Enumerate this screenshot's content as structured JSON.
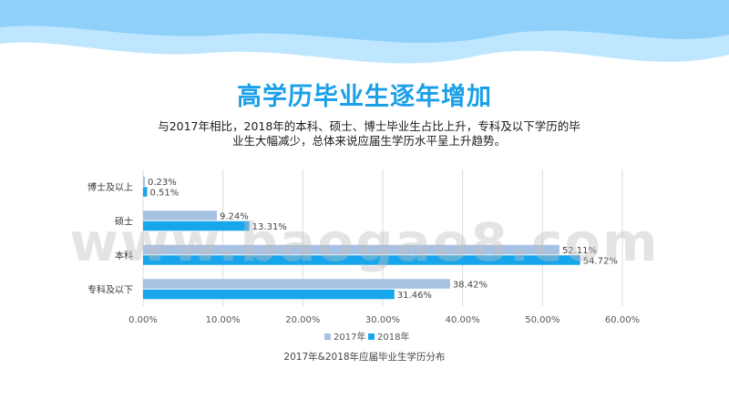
{
  "header": {
    "title": "高学历毕业生逐年增加",
    "subtitle": "与2017年相比，2018年的本科、硕士、博士毕业生占比上升，专科及以下学历的毕业生大幅减少，总体来说应届生学历水平呈上升趋势。"
  },
  "watermark": "www.baogao8.com",
  "colors": {
    "series_2017": "#a7c1e3",
    "series_2018": "#17a5ec",
    "title": "#1aa0e8",
    "wave_light": "#bfe6ff",
    "wave_dark": "#8fd0fa",
    "grid": "#dcdcdc"
  },
  "chart_data": {
    "type": "bar",
    "orientation": "horizontal",
    "title": "",
    "caption": "2017年&2018年应届毕业生学历分布",
    "categories": [
      "博士及以上",
      "硕士",
      "本科",
      "专科及以下"
    ],
    "series": [
      {
        "name": "2017年",
        "values": [
          0.23,
          9.24,
          52.11,
          38.42
        ],
        "labels": [
          "0.23%",
          "9.24%",
          "52.11%",
          "38.42%"
        ]
      },
      {
        "name": "2018年",
        "values": [
          0.51,
          13.31,
          54.72,
          31.46
        ],
        "labels": [
          "0.51%",
          "13.31%",
          "54.72%",
          "31.46%"
        ]
      }
    ],
    "xlim": [
      0,
      60
    ],
    "xticks": [
      "0.00%",
      "10.00%",
      "20.00%",
      "30.00%",
      "40.00%",
      "50.00%",
      "60.00%"
    ],
    "grid": true,
    "legend": "bottom"
  }
}
